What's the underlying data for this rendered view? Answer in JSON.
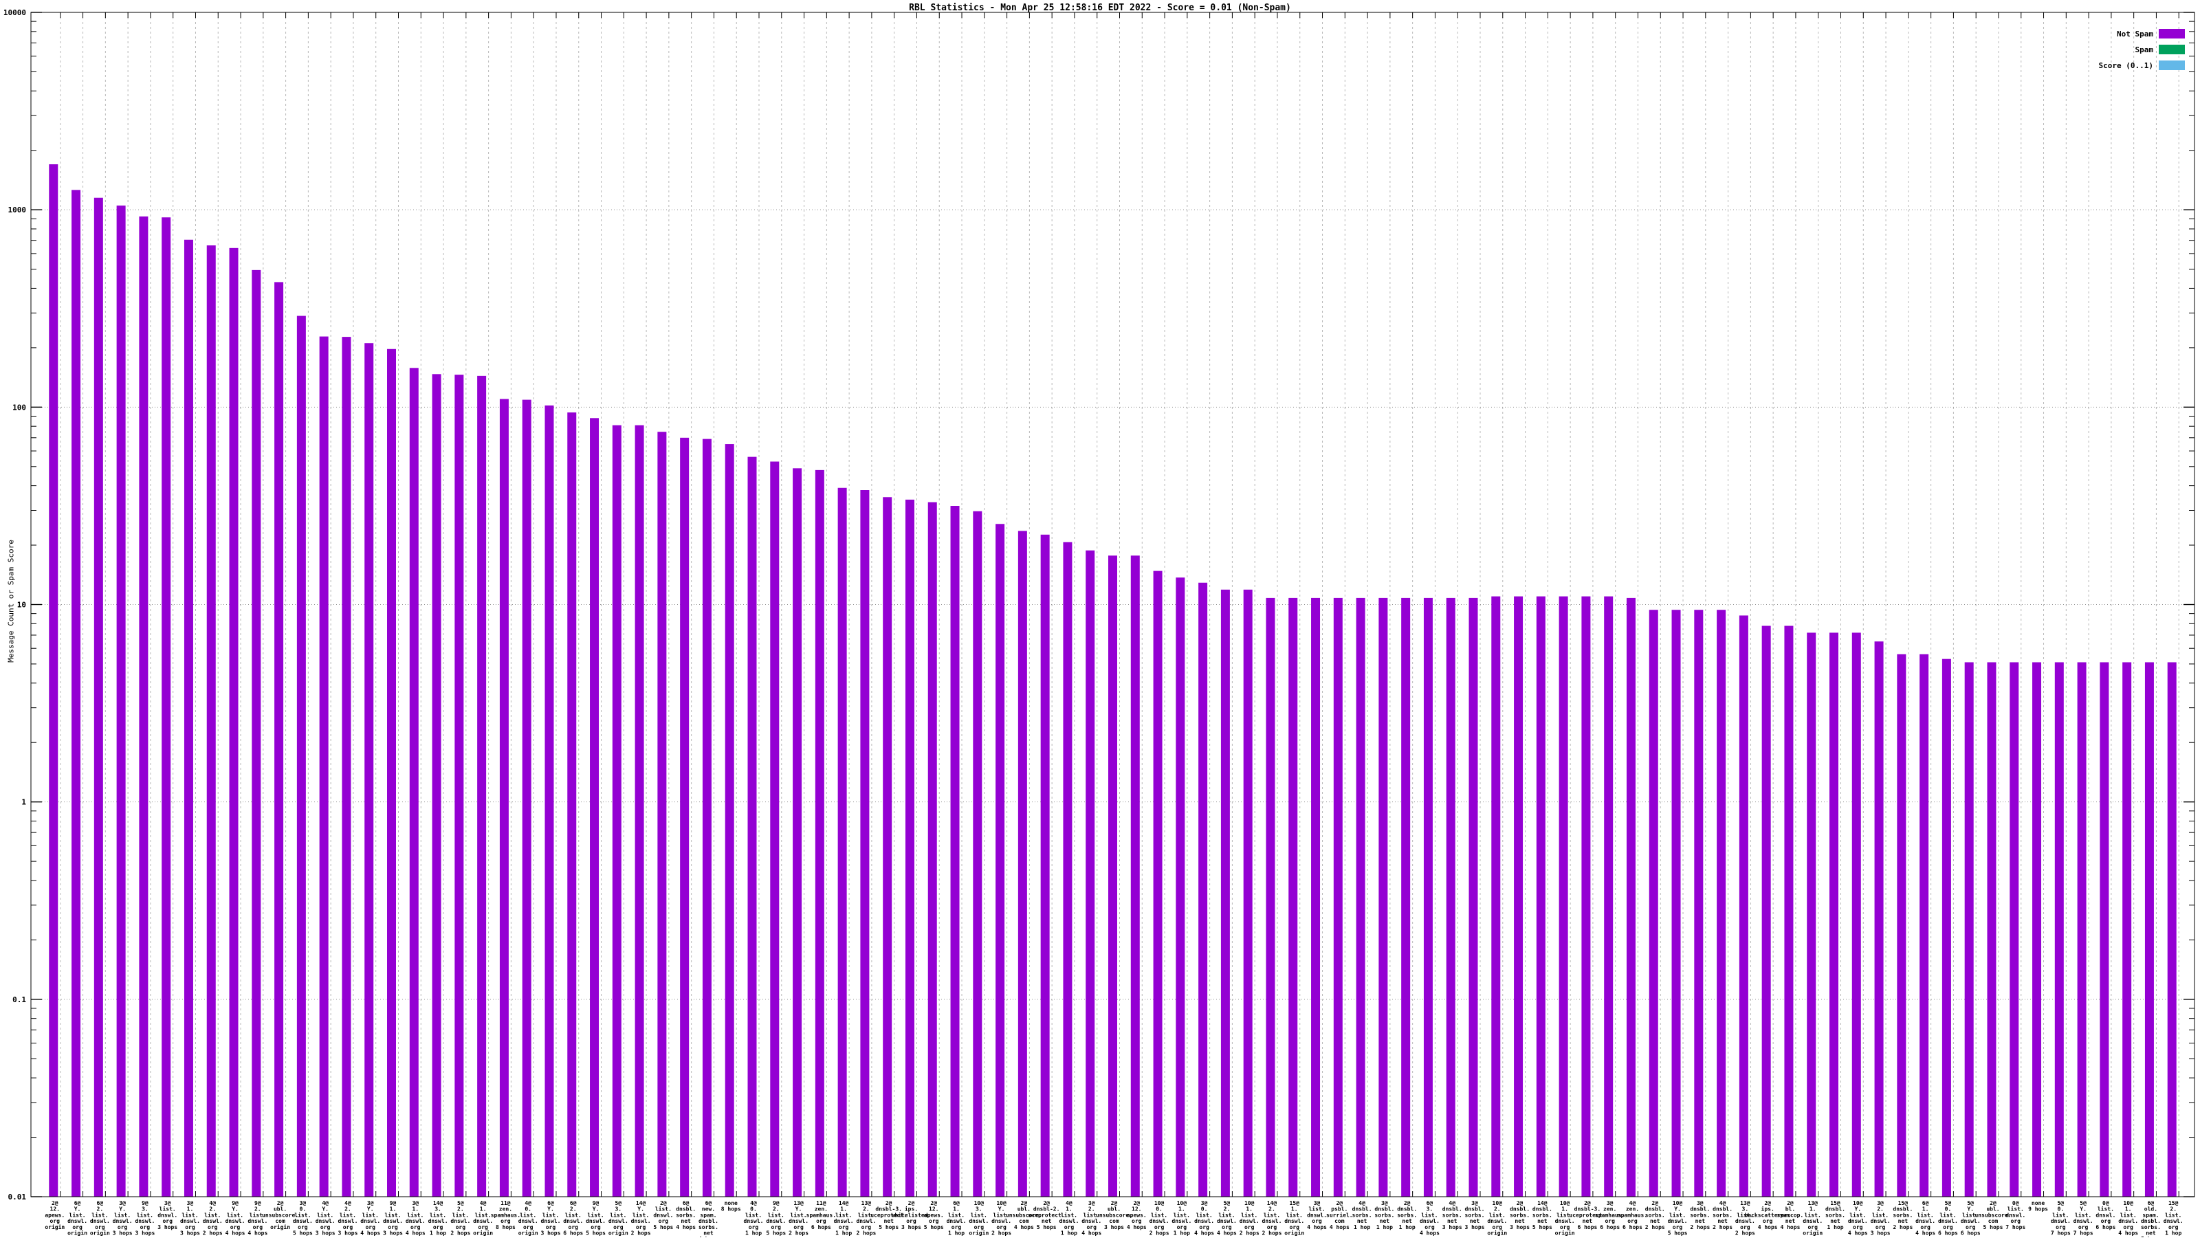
{
  "title": "RBL Statistics - Mon Apr 25 12:58:16 EDT 2022 - Score = 0.01 (Non-Spam)",
  "legend": {
    "items": [
      {
        "label": "Not Spam",
        "color": "#9400D3"
      },
      {
        "label": "Spam",
        "color": "#00A15C"
      },
      {
        "label": "Score (0..1)",
        "color": "#63B8E8"
      }
    ]
  },
  "axes": {
    "y_label": "Message Count or Spam Score",
    "y_ticks": [
      "10000",
      "1000",
      "100",
      "10",
      "1",
      "0.1",
      "0.01"
    ]
  },
  "chart_data": {
    "type": "bar",
    "title": "RBL Statistics - Mon Apr 25 12:58:16 EDT 2022 - Score = 0.01 (Non-Spam)",
    "xlabel": "",
    "ylabel": "Message Count or Spam Score",
    "y_scale": "log",
    "ylim": [
      0.01,
      10000
    ],
    "grid": true,
    "legend_position": "top-right",
    "bar_color": "#9400D3",
    "bars": [
      {
        "lines": [
          "2@",
          "12.",
          "apews.",
          "org",
          "origin"
        ],
        "value": 1700
      },
      {
        "lines": [
          "6@",
          "Y.",
          "list.",
          "dnswl.",
          "org",
          "origin"
        ],
        "value": 1260
      },
      {
        "lines": [
          "6@",
          "2.",
          "list.",
          "dnswl.",
          "org",
          "origin"
        ],
        "value": 1150
      },
      {
        "lines": [
          "3@",
          "Y.",
          "list.",
          "dnswl.",
          "org",
          "3 hops"
        ],
        "value": 1050
      },
      {
        "lines": [
          "9@",
          "3.",
          "list.",
          "dnswl.",
          "org",
          "3 hops"
        ],
        "value": 925
      },
      {
        "lines": [
          "3@",
          "list.",
          "dnswl.",
          "org",
          "3 hops"
        ],
        "value": 915
      },
      {
        "lines": [
          "3@",
          "1.",
          "list.",
          "dnswl.",
          "org",
          "3 hops"
        ],
        "value": 705
      },
      {
        "lines": [
          "4@",
          "2.",
          "list.",
          "dnswl.",
          "org",
          "2 hops"
        ],
        "value": 660
      },
      {
        "lines": [
          "9@",
          "Y.",
          "list.",
          "dnswl.",
          "org",
          "4 hops"
        ],
        "value": 640
      },
      {
        "lines": [
          "9@",
          "2.",
          "list.",
          "dnswl.",
          "org",
          "4 hops"
        ],
        "value": 495
      },
      {
        "lines": [
          "2@",
          "ubl.",
          "unsubscore.",
          "com",
          "origin"
        ],
        "value": 430
      },
      {
        "lines": [
          "3@",
          "0.",
          "list.",
          "dnswl.",
          "org",
          "5 hops"
        ],
        "value": 290
      },
      {
        "lines": [
          "4@",
          "Y.",
          "list.",
          "dnswl.",
          "org",
          "3 hops"
        ],
        "value": 228
      },
      {
        "lines": [
          "4@",
          "2.",
          "list.",
          "dnswl.",
          "org",
          "3 hops"
        ],
        "value": 227
      },
      {
        "lines": [
          "3@",
          "Y.",
          "list.",
          "dnswl.",
          "org",
          "4 hops"
        ],
        "value": 211
      },
      {
        "lines": [
          "9@",
          "1.",
          "list.",
          "dnswl.",
          "org",
          "3 hops"
        ],
        "value": 197
      },
      {
        "lines": [
          "3@",
          "1.",
          "list.",
          "dnswl.",
          "org",
          "4 hops"
        ],
        "value": 158
      },
      {
        "lines": [
          "14@",
          "3.",
          "list.",
          "dnswl.",
          "org",
          "1 hop"
        ],
        "value": 147
      },
      {
        "lines": [
          "5@",
          "2.",
          "list.",
          "dnswl.",
          "org",
          "2 hops"
        ],
        "value": 146
      },
      {
        "lines": [
          "4@",
          "1.",
          "list.",
          "dnswl.",
          "org",
          "origin"
        ],
        "value": 144
      },
      {
        "lines": [
          "11@",
          "zen.",
          "spamhaus.",
          "org",
          "8 hops"
        ],
        "value": 110
      },
      {
        "lines": [
          "4@",
          "0.",
          "list.",
          "dnswl.",
          "org",
          "origin"
        ],
        "value": 109
      },
      {
        "lines": [
          "6@",
          "Y.",
          "list.",
          "dnswl.",
          "org",
          "3 hops"
        ],
        "value": 102
      },
      {
        "lines": [
          "6@",
          "2.",
          "list.",
          "dnswl.",
          "org",
          "6 hops"
        ],
        "value": 94
      },
      {
        "lines": [
          "9@",
          "Y.",
          "list.",
          "dnswl.",
          "org",
          "5 hops"
        ],
        "value": 88
      },
      {
        "lines": [
          "5@",
          "3.",
          "list.",
          "dnswl.",
          "org",
          "origin"
        ],
        "value": 81
      },
      {
        "lines": [
          "14@",
          "Y.",
          "list.",
          "dnswl.",
          "org",
          "2 hops"
        ],
        "value": 81
      },
      {
        "lines": [
          "2@",
          "list.",
          "dnswl.",
          "org",
          "5 hops"
        ],
        "value": 75
      },
      {
        "lines": [
          "6@",
          "dnsbl.",
          "sorbs.",
          "net",
          "4 hops"
        ],
        "value": 70
      },
      {
        "lines": [
          "6@",
          "new.",
          "spam.",
          "dnsbl.",
          "sorbs.",
          "net",
          "4 hops"
        ],
        "value": 69
      },
      {
        "lines": [
          "none",
          "8 hops"
        ],
        "value": 65
      },
      {
        "lines": [
          "4@",
          "0.",
          "list.",
          "dnswl.",
          "org",
          "1 hop"
        ],
        "value": 56
      },
      {
        "lines": [
          "9@",
          "2.",
          "list.",
          "dnswl.",
          "org",
          "5 hops"
        ],
        "value": 53
      },
      {
        "lines": [
          "13@",
          "Y.",
          "list.",
          "dnswl.",
          "org",
          "2 hops"
        ],
        "value": 49
      },
      {
        "lines": [
          "11@",
          "zen.",
          "spamhaus.",
          "org",
          "6 hops"
        ],
        "value": 48
      },
      {
        "lines": [
          "14@",
          "1.",
          "list.",
          "dnswl.",
          "org",
          "1 hop"
        ],
        "value": 39
      },
      {
        "lines": [
          "13@",
          "2.",
          "list.",
          "dnswl.",
          "org",
          "2 hops"
        ],
        "value": 38
      },
      {
        "lines": [
          "2@",
          "dnsbl-3.",
          "uceprotect.",
          "net",
          "5 hops"
        ],
        "value": 35
      },
      {
        "lines": [
          "2@",
          "ips.",
          "whitelisted.",
          "org",
          "3 hops"
        ],
        "value": 34
      },
      {
        "lines": [
          "2@",
          "12.",
          "apews.",
          "org",
          "5 hops"
        ],
        "value": 33
      },
      {
        "lines": [
          "6@",
          "1.",
          "list.",
          "dnswl.",
          "org",
          "1 hop"
        ],
        "value": 31.6
      },
      {
        "lines": [
          "10@",
          "3.",
          "list.",
          "dnswl.",
          "org",
          "origin"
        ],
        "value": 29.7
      },
      {
        "lines": [
          "10@",
          "Y.",
          "list.",
          "dnswl.",
          "org",
          "2 hops"
        ],
        "value": 25.6
      },
      {
        "lines": [
          "2@",
          "ubl.",
          "unsubscore.",
          "com",
          "4 hops"
        ],
        "value": 23.6
      },
      {
        "lines": [
          "2@",
          "dnsbl-2.",
          "uceprotect.",
          "net",
          "5 hops"
        ],
        "value": 22.6
      },
      {
        "lines": [
          "4@",
          "1.",
          "list.",
          "dnswl.",
          "org",
          "1 hop"
        ],
        "value": 20.7
      },
      {
        "lines": [
          "3@",
          "2.",
          "list.",
          "dnswl.",
          "org",
          "4 hops"
        ],
        "value": 18.8
      },
      {
        "lines": [
          "2@",
          "ubl.",
          "unsubscore.",
          "com",
          "3 hops"
        ],
        "value": 17.7
      },
      {
        "lines": [
          "2@",
          "12.",
          "apews.",
          "org",
          "4 hops"
        ],
        "value": 17.7
      },
      {
        "lines": [
          "10@",
          "0.",
          "list.",
          "dnswl.",
          "org",
          "2 hops"
        ],
        "value": 14.8
      },
      {
        "lines": [
          "10@",
          "1.",
          "list.",
          "dnswl.",
          "org",
          "1 hop"
        ],
        "value": 13.7
      },
      {
        "lines": [
          "3@",
          "0.",
          "list.",
          "dnswl.",
          "org",
          "4 hops"
        ],
        "value": 12.9
      },
      {
        "lines": [
          "5@",
          "2.",
          "list.",
          "dnswl.",
          "org",
          "4 hops"
        ],
        "value": 11.9
      },
      {
        "lines": [
          "10@",
          "1.",
          "list.",
          "dnswl.",
          "org",
          "2 hops"
        ],
        "value": 11.9
      },
      {
        "lines": [
          "14@",
          "2.",
          "list.",
          "dnswl.",
          "org",
          "2 hops"
        ],
        "value": 10.8
      },
      {
        "lines": [
          "15@",
          "1.",
          "list.",
          "dnswl.",
          "org",
          "origin"
        ],
        "value": 10.8
      },
      {
        "lines": [
          "3@",
          "list.",
          "dnswl.",
          "org",
          "4 hops"
        ],
        "value": 10.8
      },
      {
        "lines": [
          "2@",
          "psbl.",
          "surriel.",
          "com",
          "4 hops"
        ],
        "value": 10.8
      },
      {
        "lines": [
          "4@",
          "dnsbl.",
          "sorbs.",
          "net",
          "1 hop"
        ],
        "value": 10.8
      },
      {
        "lines": [
          "3@",
          "dnsbl.",
          "sorbs.",
          "net",
          "1 hop"
        ],
        "value": 10.8
      },
      {
        "lines": [
          "2@",
          "dnsbl.",
          "sorbs.",
          "net",
          "1 hop"
        ],
        "value": 10.8
      },
      {
        "lines": [
          "6@",
          "3.",
          "list.",
          "dnswl.",
          "org",
          "4 hops"
        ],
        "value": 10.8
      },
      {
        "lines": [
          "4@",
          "dnsbl.",
          "sorbs.",
          "net",
          "3 hops"
        ],
        "value": 10.8
      },
      {
        "lines": [
          "3@",
          "dnsbl.",
          "sorbs.",
          "net",
          "3 hops"
        ],
        "value": 10.8
      },
      {
        "lines": [
          "10@",
          "2.",
          "list.",
          "dnswl.",
          "org",
          "origin"
        ],
        "value": 11
      },
      {
        "lines": [
          "2@",
          "dnsbl.",
          "sorbs.",
          "net",
          "3 hops"
        ],
        "value": 11
      },
      {
        "lines": [
          "14@",
          "dnsbl.",
          "sorbs.",
          "net",
          "5 hops"
        ],
        "value": 11
      },
      {
        "lines": [
          "10@",
          "1.",
          "list.",
          "dnswl.",
          "org",
          "origin"
        ],
        "value": 11
      },
      {
        "lines": [
          "2@",
          "dnsbl-3.",
          "uceprotect.",
          "net",
          "6 hops"
        ],
        "value": 11
      },
      {
        "lines": [
          "3@",
          "zen.",
          "spamhaus.",
          "org",
          "6 hops"
        ],
        "value": 11
      },
      {
        "lines": [
          "4@",
          "zen.",
          "spamhaus.",
          "org",
          "6 hops"
        ],
        "value": 10.8
      },
      {
        "lines": [
          "2@",
          "dnsbl.",
          "sorbs.",
          "net",
          "2 hops"
        ],
        "value": 9.4
      },
      {
        "lines": [
          "10@",
          "Y.",
          "list.",
          "dnswl.",
          "org",
          "5 hops"
        ],
        "value": 9.4
      },
      {
        "lines": [
          "3@",
          "dnsbl.",
          "sorbs.",
          "net",
          "2 hops"
        ],
        "value": 9.4
      },
      {
        "lines": [
          "4@",
          "dnsbl.",
          "sorbs.",
          "net",
          "2 hops"
        ],
        "value": 9.4
      },
      {
        "lines": [
          "13@",
          "3.",
          "list.",
          "dnswl.",
          "org",
          "2 hops"
        ],
        "value": 8.8
      },
      {
        "lines": [
          "2@",
          "ips.",
          "backscatterer.",
          "org",
          "4 hops"
        ],
        "value": 7.8
      },
      {
        "lines": [
          "2@",
          "bl.",
          "spamcop.",
          "net",
          "4 hops"
        ],
        "value": 7.8
      },
      {
        "lines": [
          "13@",
          "1.",
          "list.",
          "dnswl.",
          "org",
          "origin"
        ],
        "value": 7.2
      },
      {
        "lines": [
          "15@",
          "dnsbl.",
          "sorbs.",
          "net",
          "1 hop"
        ],
        "value": 7.2
      },
      {
        "lines": [
          "10@",
          "Y.",
          "list.",
          "dnswl.",
          "org",
          "4 hops"
        ],
        "value": 7.2
      },
      {
        "lines": [
          "3@",
          "2.",
          "list.",
          "dnswl.",
          "org",
          "3 hops"
        ],
        "value": 6.5
      },
      {
        "lines": [
          "15@",
          "dnsbl.",
          "sorbs.",
          "net",
          "2 hops"
        ],
        "value": 5.6
      },
      {
        "lines": [
          "6@",
          "1.",
          "list.",
          "dnswl.",
          "org",
          "4 hops"
        ],
        "value": 5.6
      },
      {
        "lines": [
          "5@",
          "0.",
          "list.",
          "dnswl.",
          "org",
          "6 hops"
        ],
        "value": 5.3
      },
      {
        "lines": [
          "5@",
          "Y.",
          "list.",
          "dnswl.",
          "org",
          "6 hops"
        ],
        "value": 5.1
      },
      {
        "lines": [
          "2@",
          "ubl.",
          "unsubscore.",
          "com",
          "5 hops"
        ],
        "value": 5.1
      },
      {
        "lines": [
          "0@",
          "list.",
          "dnswl.",
          "org",
          "7 hops"
        ],
        "value": 5.1
      },
      {
        "lines": [
          "none",
          "9 hops"
        ],
        "value": 5.1
      },
      {
        "lines": [
          "5@",
          "0.",
          "list.",
          "dnswl.",
          "org",
          "7 hops"
        ],
        "value": 5.1
      },
      {
        "lines": [
          "5@",
          "Y.",
          "list.",
          "dnswl.",
          "org",
          "7 hops"
        ],
        "value": 5.1
      },
      {
        "lines": [
          "0@",
          "list.",
          "dnswl.",
          "org",
          "6 hops"
        ],
        "value": 5.1
      },
      {
        "lines": [
          "10@",
          "1.",
          "list.",
          "dnswl.",
          "org",
          "4 hops"
        ],
        "value": 5.1
      },
      {
        "lines": [
          "6@",
          "old.",
          "spam.",
          "dnsbl.",
          "sorbs.",
          "net",
          "5 hops"
        ],
        "value": 5.1
      },
      {
        "lines": [
          "15@",
          "2.",
          "list.",
          "dnswl.",
          "org",
          "1 hop"
        ],
        "value": 5.1
      }
    ]
  },
  "style": {
    "h_grid_color": "#909090",
    "v_grid_color": "#b8b8b8",
    "border_color": "#000000",
    "background": "#ffffff"
  }
}
